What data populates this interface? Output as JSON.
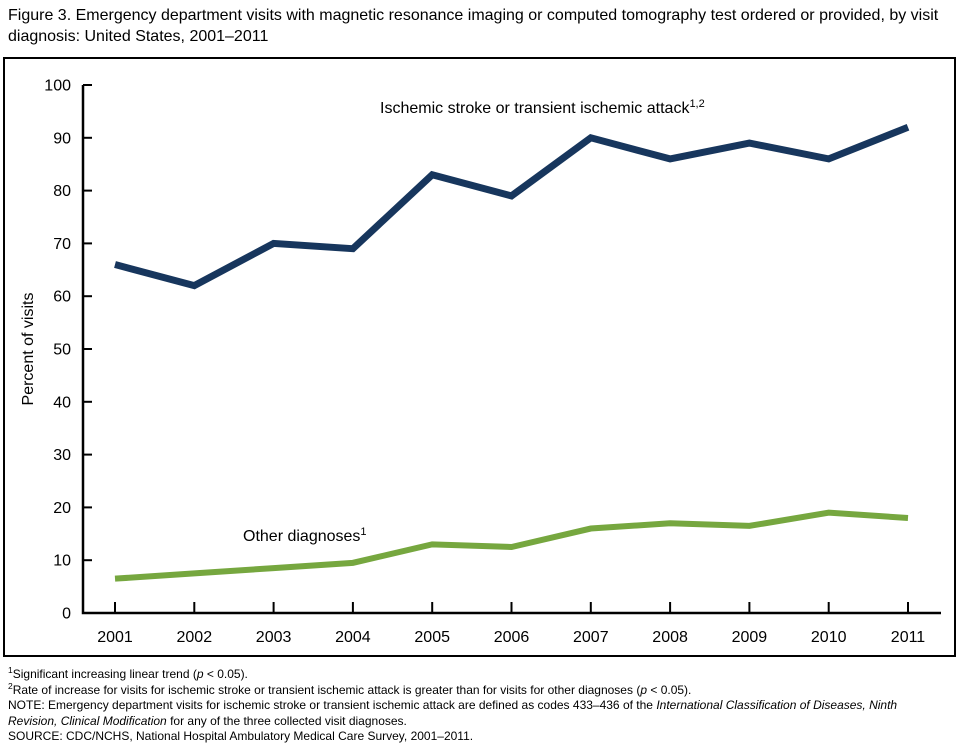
{
  "title": "Figure 3. Emergency department visits with magnetic resonance imaging or computed tomography test ordered or provided, by visit diagnosis: United States, 2001–2011",
  "chart_data": {
    "type": "line",
    "categories": [
      "2001",
      "2002",
      "2003",
      "2004",
      "2005",
      "2006",
      "2007",
      "2008",
      "2009",
      "2010",
      "2011"
    ],
    "series": [
      {
        "name": "Ischemic stroke or transient ischemic attack",
        "label_superscript": "1,2",
        "color": "#17365D",
        "values": [
          66,
          62,
          70,
          69,
          83,
          79,
          90,
          86,
          89,
          86,
          92
        ]
      },
      {
        "name": "Other diagnoses",
        "label_superscript": "1",
        "color": "#76A73F",
        "values": [
          6.5,
          7.5,
          8.5,
          9.5,
          13,
          12.5,
          16,
          17,
          16.5,
          19,
          18
        ]
      }
    ],
    "title": "",
    "xlabel": "",
    "ylabel": "Percent of visits",
    "ylim": [
      0,
      100
    ],
    "yticks": [
      0,
      10,
      20,
      30,
      40,
      50,
      60,
      70,
      80,
      90,
      100
    ],
    "grid": false,
    "legend_position": "inline-annotations",
    "axis_color": "#000000"
  },
  "footnotes": [
    {
      "segments": [
        {
          "t": "1",
          "sup": true
        },
        {
          "t": "Significant increasing linear trend ("
        },
        {
          "t": "p",
          "i": true
        },
        {
          "t": " < 0.05)."
        }
      ]
    },
    {
      "segments": [
        {
          "t": "2",
          "sup": true
        },
        {
          "t": "Rate of increase for visits for ischemic stroke or transient ischemic attack is greater than for visits for other diagnoses ("
        },
        {
          "t": "p",
          "i": true
        },
        {
          "t": " < 0.05)."
        }
      ]
    },
    {
      "segments": [
        {
          "t": "NOTE: Emergency department visits for ischemic stroke or transient ischemic attack are defined as codes 433–436 of the "
        },
        {
          "t": "International Classification of Diseases, Ninth Revision, Clinical Modification",
          "i": true
        },
        {
          "t": " for any of the three collected visit diagnoses."
        }
      ]
    },
    {
      "segments": [
        {
          "t": "SOURCE: CDC/NCHS, National Hospital Ambulatory Medical Care Survey, 2001–2011."
        }
      ]
    }
  ]
}
